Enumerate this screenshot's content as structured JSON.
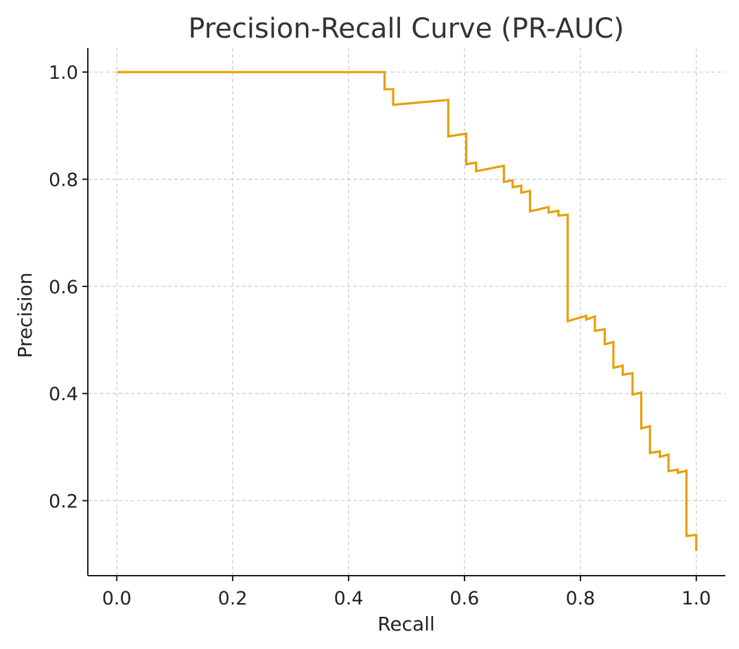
{
  "chart_data": {
    "type": "line",
    "title": "Precision-Recall Curve (PR-AUC)",
    "xlabel": "Recall",
    "ylabel": "Precision",
    "xlim": [
      -0.05,
      1.05
    ],
    "ylim": [
      0.06,
      1.045
    ],
    "xticks": [
      0.0,
      0.2,
      0.4,
      0.6,
      0.8,
      1.0
    ],
    "xtick_labels": [
      "0.0",
      "0.2",
      "0.4",
      "0.6",
      "0.8",
      "1.0"
    ],
    "yticks": [
      0.2,
      0.4,
      0.6,
      0.8,
      1.0
    ],
    "ytick_labels": [
      "0.2",
      "0.4",
      "0.6",
      "0.8",
      "1.0"
    ],
    "grid": true,
    "legend": false,
    "series": [
      {
        "name": "PR curve",
        "color": "#E69F00",
        "x": [
          0.0,
          0.462,
          0.462,
          0.477,
          0.477,
          0.572,
          0.572,
          0.603,
          0.603,
          0.62,
          0.62,
          0.668,
          0.668,
          0.683,
          0.683,
          0.698,
          0.698,
          0.713,
          0.713,
          0.745,
          0.745,
          0.762,
          0.762,
          0.778,
          0.778,
          0.81,
          0.81,
          0.825,
          0.825,
          0.842,
          0.842,
          0.857,
          0.857,
          0.873,
          0.873,
          0.89,
          0.89,
          0.905,
          0.905,
          0.92,
          0.92,
          0.937,
          0.937,
          0.952,
          0.952,
          0.968,
          0.968,
          0.983,
          0.983,
          1.0,
          1.0
        ],
        "y": [
          1.0,
          1.0,
          0.968,
          0.968,
          0.939,
          0.948,
          0.88,
          0.885,
          0.828,
          0.831,
          0.815,
          0.825,
          0.795,
          0.798,
          0.785,
          0.788,
          0.775,
          0.778,
          0.74,
          0.748,
          0.738,
          0.741,
          0.732,
          0.734,
          0.535,
          0.545,
          0.538,
          0.544,
          0.517,
          0.52,
          0.492,
          0.496,
          0.448,
          0.452,
          0.435,
          0.438,
          0.398,
          0.402,
          0.335,
          0.339,
          0.289,
          0.292,
          0.282,
          0.286,
          0.255,
          0.258,
          0.252,
          0.256,
          0.134,
          0.136,
          0.106
        ]
      }
    ]
  }
}
